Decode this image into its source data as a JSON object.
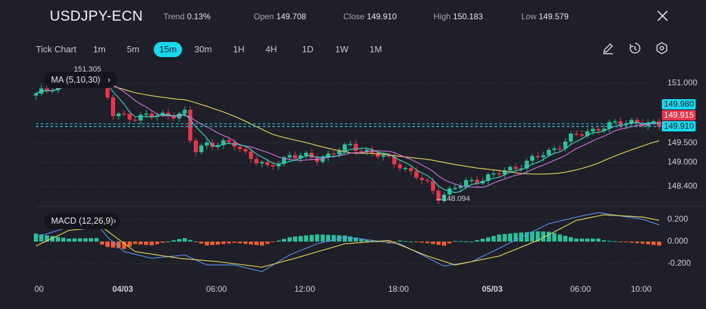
{
  "header": {
    "symbol": "USDJPY-ECN",
    "trend_label": "Trend",
    "trend_value": "0.13%",
    "open_label": "Open",
    "open_value": "149.708",
    "close_label": "Close",
    "close_value": "149.910",
    "high_label": "High",
    "high_value": "150.183",
    "low_label": "Low",
    "low_value": "149.579",
    "close_icon": "close-icon"
  },
  "timeframes": [
    {
      "label": "Tick Chart"
    },
    {
      "label": "1m"
    },
    {
      "label": "5m"
    },
    {
      "label": "15m",
      "active": true
    },
    {
      "label": "30m"
    },
    {
      "label": "1H"
    },
    {
      "label": "4H"
    },
    {
      "label": "1D"
    },
    {
      "label": "1W"
    },
    {
      "label": "1M"
    }
  ],
  "tools": [
    "pencil-icon",
    "timer-icon",
    "settings-icon"
  ],
  "indicators": {
    "ma_label": "MA (5,10,30)",
    "macd_label": "MACD (12,26,9)"
  },
  "colors": {
    "up": "#26c29a",
    "down": "#e8344d",
    "ma5": "#3fd3c0",
    "ma10": "#c773d9",
    "ma30": "#e3d35a",
    "macd": "#5b8de8",
    "signal": "#e3d35a",
    "hist_up": "#26c29a",
    "hist_down": "#f0602e",
    "accent": "#19d8ee"
  },
  "chart_data": {
    "type": "candlestick",
    "price_axis": {
      "ticks": [
        "151.000",
        "149.500",
        "149.000",
        "148.400"
      ],
      "tick_values": [
        151.0,
        149.5,
        149.0,
        148.4
      ],
      "range": [
        147.95,
        151.4
      ]
    },
    "price_labels": [
      {
        "text": "149.980",
        "value": 149.98,
        "color": "#19d8ee"
      },
      {
        "text": "149.915",
        "value": 149.915,
        "color": "#e8344d"
      },
      {
        "text": "149.910",
        "value": 149.91,
        "color": "#19d8ee"
      }
    ],
    "annotations": {
      "high": "151.305",
      "low": "148.094"
    },
    "price_keypoints": [
      [
        0,
        150.7
      ],
      [
        6,
        151.15
      ],
      [
        12,
        151.05
      ],
      [
        14,
        150.2
      ],
      [
        18,
        150.15
      ],
      [
        27,
        150.24
      ],
      [
        28,
        149.55
      ],
      [
        29,
        149.3
      ],
      [
        31,
        149.5
      ],
      [
        36,
        149.45
      ],
      [
        42,
        148.85
      ],
      [
        46,
        149.2
      ],
      [
        51,
        149.1
      ],
      [
        57,
        149.42
      ],
      [
        61,
        149.25
      ],
      [
        66,
        148.95
      ],
      [
        71,
        148.45
      ],
      [
        73,
        148.15
      ],
      [
        78,
        148.5
      ],
      [
        83,
        148.68
      ],
      [
        88,
        148.95
      ],
      [
        93,
        149.28
      ],
      [
        97,
        149.63
      ],
      [
        102,
        149.88
      ],
      [
        108,
        150.05
      ],
      [
        113,
        149.91
      ]
    ],
    "macd_axis": {
      "ticks": [
        "0.200",
        "0.000",
        "-0.200"
      ],
      "tick_values": [
        0.2,
        0,
        -0.2
      ]
    },
    "macd_keypoints": [
      [
        0,
        0.04
      ],
      [
        6,
        0.13
      ],
      [
        11,
        0.16
      ],
      [
        13,
        0.04
      ],
      [
        16,
        -0.09
      ],
      [
        21,
        -0.15
      ],
      [
        27,
        -0.12
      ],
      [
        31,
        -0.21
      ],
      [
        36,
        -0.21
      ],
      [
        41,
        -0.27
      ],
      [
        46,
        -0.12
      ],
      [
        51,
        -0.02
      ],
      [
        56,
        0.04
      ],
      [
        61,
        0.01
      ],
      [
        66,
        -0.02
      ],
      [
        70,
        -0.12
      ],
      [
        74,
        -0.22
      ],
      [
        79,
        -0.18
      ],
      [
        84,
        -0.06
      ],
      [
        88,
        0.04
      ],
      [
        93,
        0.16
      ],
      [
        98,
        0.22
      ],
      [
        102,
        0.26
      ],
      [
        106,
        0.23
      ],
      [
        110,
        0.2
      ],
      [
        113,
        0.15
      ]
    ],
    "signal_keypoints": [
      [
        0,
        -0.04
      ],
      [
        6,
        0.1
      ],
      [
        12,
        0.13
      ],
      [
        18,
        -0.09
      ],
      [
        26,
        -0.15
      ],
      [
        33,
        -0.18
      ],
      [
        41,
        -0.23
      ],
      [
        47,
        -0.15
      ],
      [
        56,
        -0.02
      ],
      [
        64,
        0.01
      ],
      [
        71,
        -0.13
      ],
      [
        76,
        -0.21
      ],
      [
        84,
        -0.13
      ],
      [
        91,
        0.01
      ],
      [
        98,
        0.19
      ],
      [
        103,
        0.24
      ],
      [
        110,
        0.22
      ],
      [
        113,
        0.19
      ]
    ],
    "x_labels": [
      {
        "text": "00",
        "index": 0
      },
      {
        "text": "04/03",
        "index": 16
      },
      {
        "text": "06:00",
        "index": 33
      },
      {
        "text": "12:00",
        "index": 49
      },
      {
        "text": "18:00",
        "index": 66
      },
      {
        "text": "05/03",
        "index": 83
      },
      {
        "text": "06:00",
        "index": 99
      },
      {
        "text": "10:00",
        "index": 110
      }
    ]
  }
}
